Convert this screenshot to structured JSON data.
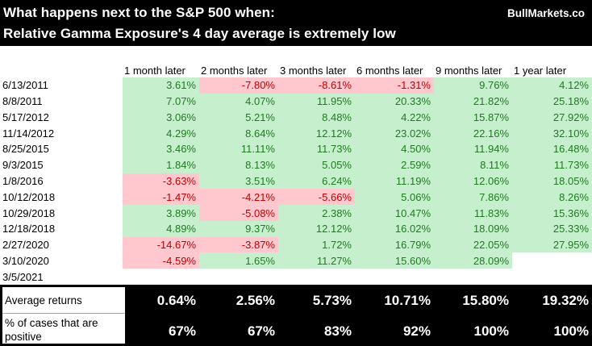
{
  "header": {
    "title_line1": "What happens next to the S&P 500 when:",
    "title_line2": "Relative Gamma Exposure's 4 day average is extremely low",
    "brand": "BullMarkets.co"
  },
  "table": {
    "column_headers": [
      "1 month later",
      "2 months later",
      "3 months later",
      "6 months later",
      "9 months later",
      "1 year later"
    ],
    "rows": [
      {
        "date": "6/13/2011",
        "values": [
          "3.61%",
          "-7.80%",
          "-8.61%",
          "-1.31%",
          "9.76%",
          "4.12%"
        ]
      },
      {
        "date": "8/8/2011",
        "values": [
          "7.07%",
          "4.07%",
          "11.95%",
          "20.33%",
          "21.82%",
          "25.18%"
        ]
      },
      {
        "date": "5/17/2012",
        "values": [
          "3.06%",
          "5.21%",
          "8.48%",
          "4.22%",
          "15.87%",
          "27.92%"
        ]
      },
      {
        "date": "11/14/2012",
        "values": [
          "4.29%",
          "8.64%",
          "12.12%",
          "23.02%",
          "22.16%",
          "32.10%"
        ]
      },
      {
        "date": "8/25/2015",
        "values": [
          "3.46%",
          "11.11%",
          "11.73%",
          "4.50%",
          "11.94%",
          "16.48%"
        ]
      },
      {
        "date": "9/3/2015",
        "values": [
          "1.84%",
          "8.13%",
          "5.05%",
          "2.59%",
          "8.11%",
          "11.73%"
        ]
      },
      {
        "date": "1/8/2016",
        "values": [
          "-3.63%",
          "3.51%",
          "6.24%",
          "11.19%",
          "12.06%",
          "18.05%"
        ]
      },
      {
        "date": "10/12/2018",
        "values": [
          "-1.47%",
          "-4.21%",
          "-5.66%",
          "5.06%",
          "7.86%",
          "8.26%"
        ]
      },
      {
        "date": "10/29/2018",
        "values": [
          "3.89%",
          "-5.08%",
          "2.38%",
          "10.47%",
          "11.83%",
          "15.36%"
        ]
      },
      {
        "date": "12/18/2018",
        "values": [
          "4.89%",
          "9.37%",
          "12.12%",
          "16.02%",
          "18.09%",
          "25.33%"
        ]
      },
      {
        "date": "2/27/2020",
        "values": [
          "-14.67%",
          "-3.87%",
          "1.72%",
          "16.79%",
          "22.05%",
          "27.95%"
        ]
      },
      {
        "date": "3/10/2020",
        "values": [
          "-4.59%",
          "1.65%",
          "11.27%",
          "15.60%",
          "28.09%",
          ""
        ]
      },
      {
        "date": "3/5/2021",
        "values": [
          "",
          "",
          "",
          "",
          "",
          ""
        ]
      }
    ]
  },
  "summary": {
    "average_label": "Average returns",
    "average_values": [
      "0.64%",
      "2.56%",
      "5.73%",
      "10.71%",
      "15.80%",
      "19.32%"
    ],
    "positive_label": "% of cases that are positive",
    "positive_values": [
      "67%",
      "67%",
      "83%",
      "92%",
      "100%",
      "100%"
    ]
  },
  "colors": {
    "positive_fill": "#C6EFCE",
    "positive_text": "#1E7B1E",
    "negative_fill": "#FFC7CE",
    "negative_text": "#C00000",
    "header_bg": "#000000",
    "header_text": "#FFFFFF"
  },
  "chart_data": {
    "type": "table",
    "title": "What happens next to the S&P 500 when: Relative Gamma Exposure's 4 day average is extremely low",
    "source": "BullMarkets.co",
    "units": "percent return of S&P 500",
    "columns": [
      "1 month later",
      "2 months later",
      "3 months later",
      "6 months later",
      "9 months later",
      "1 year later"
    ],
    "rows": [
      {
        "date": "6/13/2011",
        "values": [
          3.61,
          -7.8,
          -8.61,
          -1.31,
          9.76,
          4.12
        ]
      },
      {
        "date": "8/8/2011",
        "values": [
          7.07,
          4.07,
          11.95,
          20.33,
          21.82,
          25.18
        ]
      },
      {
        "date": "5/17/2012",
        "values": [
          3.06,
          5.21,
          8.48,
          4.22,
          15.87,
          27.92
        ]
      },
      {
        "date": "11/14/2012",
        "values": [
          4.29,
          8.64,
          12.12,
          23.02,
          22.16,
          32.1
        ]
      },
      {
        "date": "8/25/2015",
        "values": [
          3.46,
          11.11,
          11.73,
          4.5,
          11.94,
          16.48
        ]
      },
      {
        "date": "9/3/2015",
        "values": [
          1.84,
          8.13,
          5.05,
          2.59,
          8.11,
          11.73
        ]
      },
      {
        "date": "1/8/2016",
        "values": [
          -3.63,
          3.51,
          6.24,
          11.19,
          12.06,
          18.05
        ]
      },
      {
        "date": "10/12/2018",
        "values": [
          -1.47,
          -4.21,
          -5.66,
          5.06,
          7.86,
          8.26
        ]
      },
      {
        "date": "10/29/2018",
        "values": [
          3.89,
          -5.08,
          2.38,
          10.47,
          11.83,
          15.36
        ]
      },
      {
        "date": "12/18/2018",
        "values": [
          4.89,
          9.37,
          12.12,
          16.02,
          18.09,
          25.33
        ]
      },
      {
        "date": "2/27/2020",
        "values": [
          -14.67,
          -3.87,
          1.72,
          16.79,
          22.05,
          27.95
        ]
      },
      {
        "date": "3/10/2020",
        "values": [
          -4.59,
          1.65,
          11.27,
          15.6,
          28.09,
          null
        ]
      },
      {
        "date": "3/5/2021",
        "values": [
          null,
          null,
          null,
          null,
          null,
          null
        ]
      }
    ],
    "average_returns": [
      0.64,
      2.56,
      5.73,
      10.71,
      15.8,
      19.32
    ],
    "pct_cases_positive": [
      67,
      67,
      83,
      92,
      100,
      100
    ],
    "cell_color_rule": "green fill = positive return, pink fill = negative return, white = no data yet"
  }
}
